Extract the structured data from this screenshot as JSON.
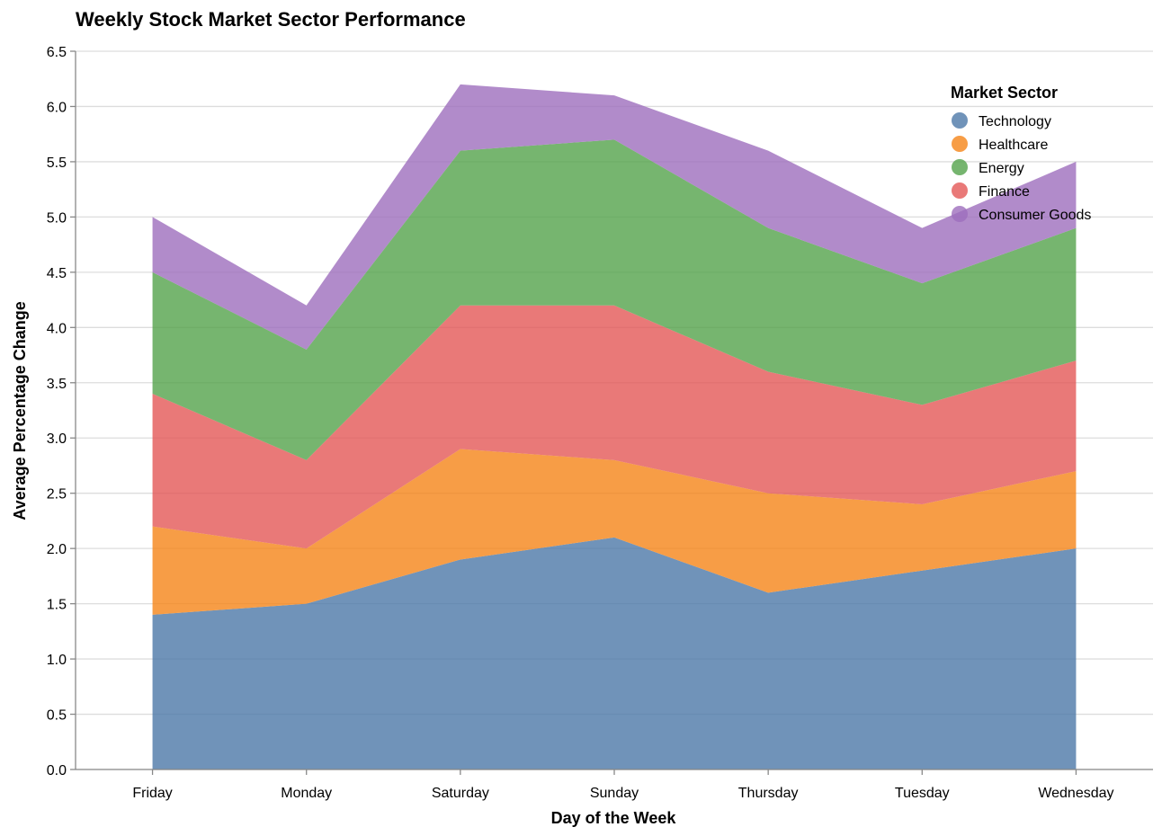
{
  "chart_data": {
    "type": "area",
    "stacked": true,
    "title": "Weekly Stock Market Sector Performance",
    "xlabel": "Day of the Week",
    "ylabel": "Average Percentage Change",
    "categories": [
      "Friday",
      "Monday",
      "Saturday",
      "Sunday",
      "Thursday",
      "Tuesday",
      "Wednesday"
    ],
    "ylim": [
      0,
      6.5
    ],
    "yticks": [
      "0.0",
      "0.5",
      "1.0",
      "1.5",
      "2.0",
      "2.5",
      "3.0",
      "3.5",
      "4.0",
      "4.5",
      "5.0",
      "5.5",
      "6.0",
      "6.5"
    ],
    "grid": true,
    "legend": {
      "title": "Market Sector",
      "position": "top-right"
    },
    "series": [
      {
        "name": "Technology",
        "color": "#4c78a8",
        "values": [
          1.4,
          1.5,
          1.9,
          2.1,
          1.6,
          1.8,
          2.0
        ]
      },
      {
        "name": "Healthcare",
        "color": "#f58518",
        "values": [
          0.8,
          0.5,
          1.0,
          0.7,
          0.9,
          0.6,
          0.7
        ]
      },
      {
        "name": "Finance",
        "color": "#e45756",
        "values": [
          1.2,
          0.8,
          1.3,
          1.4,
          1.1,
          0.9,
          1.0
        ]
      },
      {
        "name": "Energy",
        "color": "#54a24b",
        "values": [
          1.1,
          1.0,
          1.4,
          1.5,
          1.3,
          1.1,
          1.2
        ]
      },
      {
        "name": "Consumer Goods",
        "color": "#9e6ebd",
        "values": [
          0.5,
          0.4,
          0.6,
          0.4,
          0.7,
          0.5,
          0.6
        ]
      }
    ],
    "legend_order": [
      "Technology",
      "Healthcare",
      "Energy",
      "Finance",
      "Consumer Goods"
    ]
  }
}
